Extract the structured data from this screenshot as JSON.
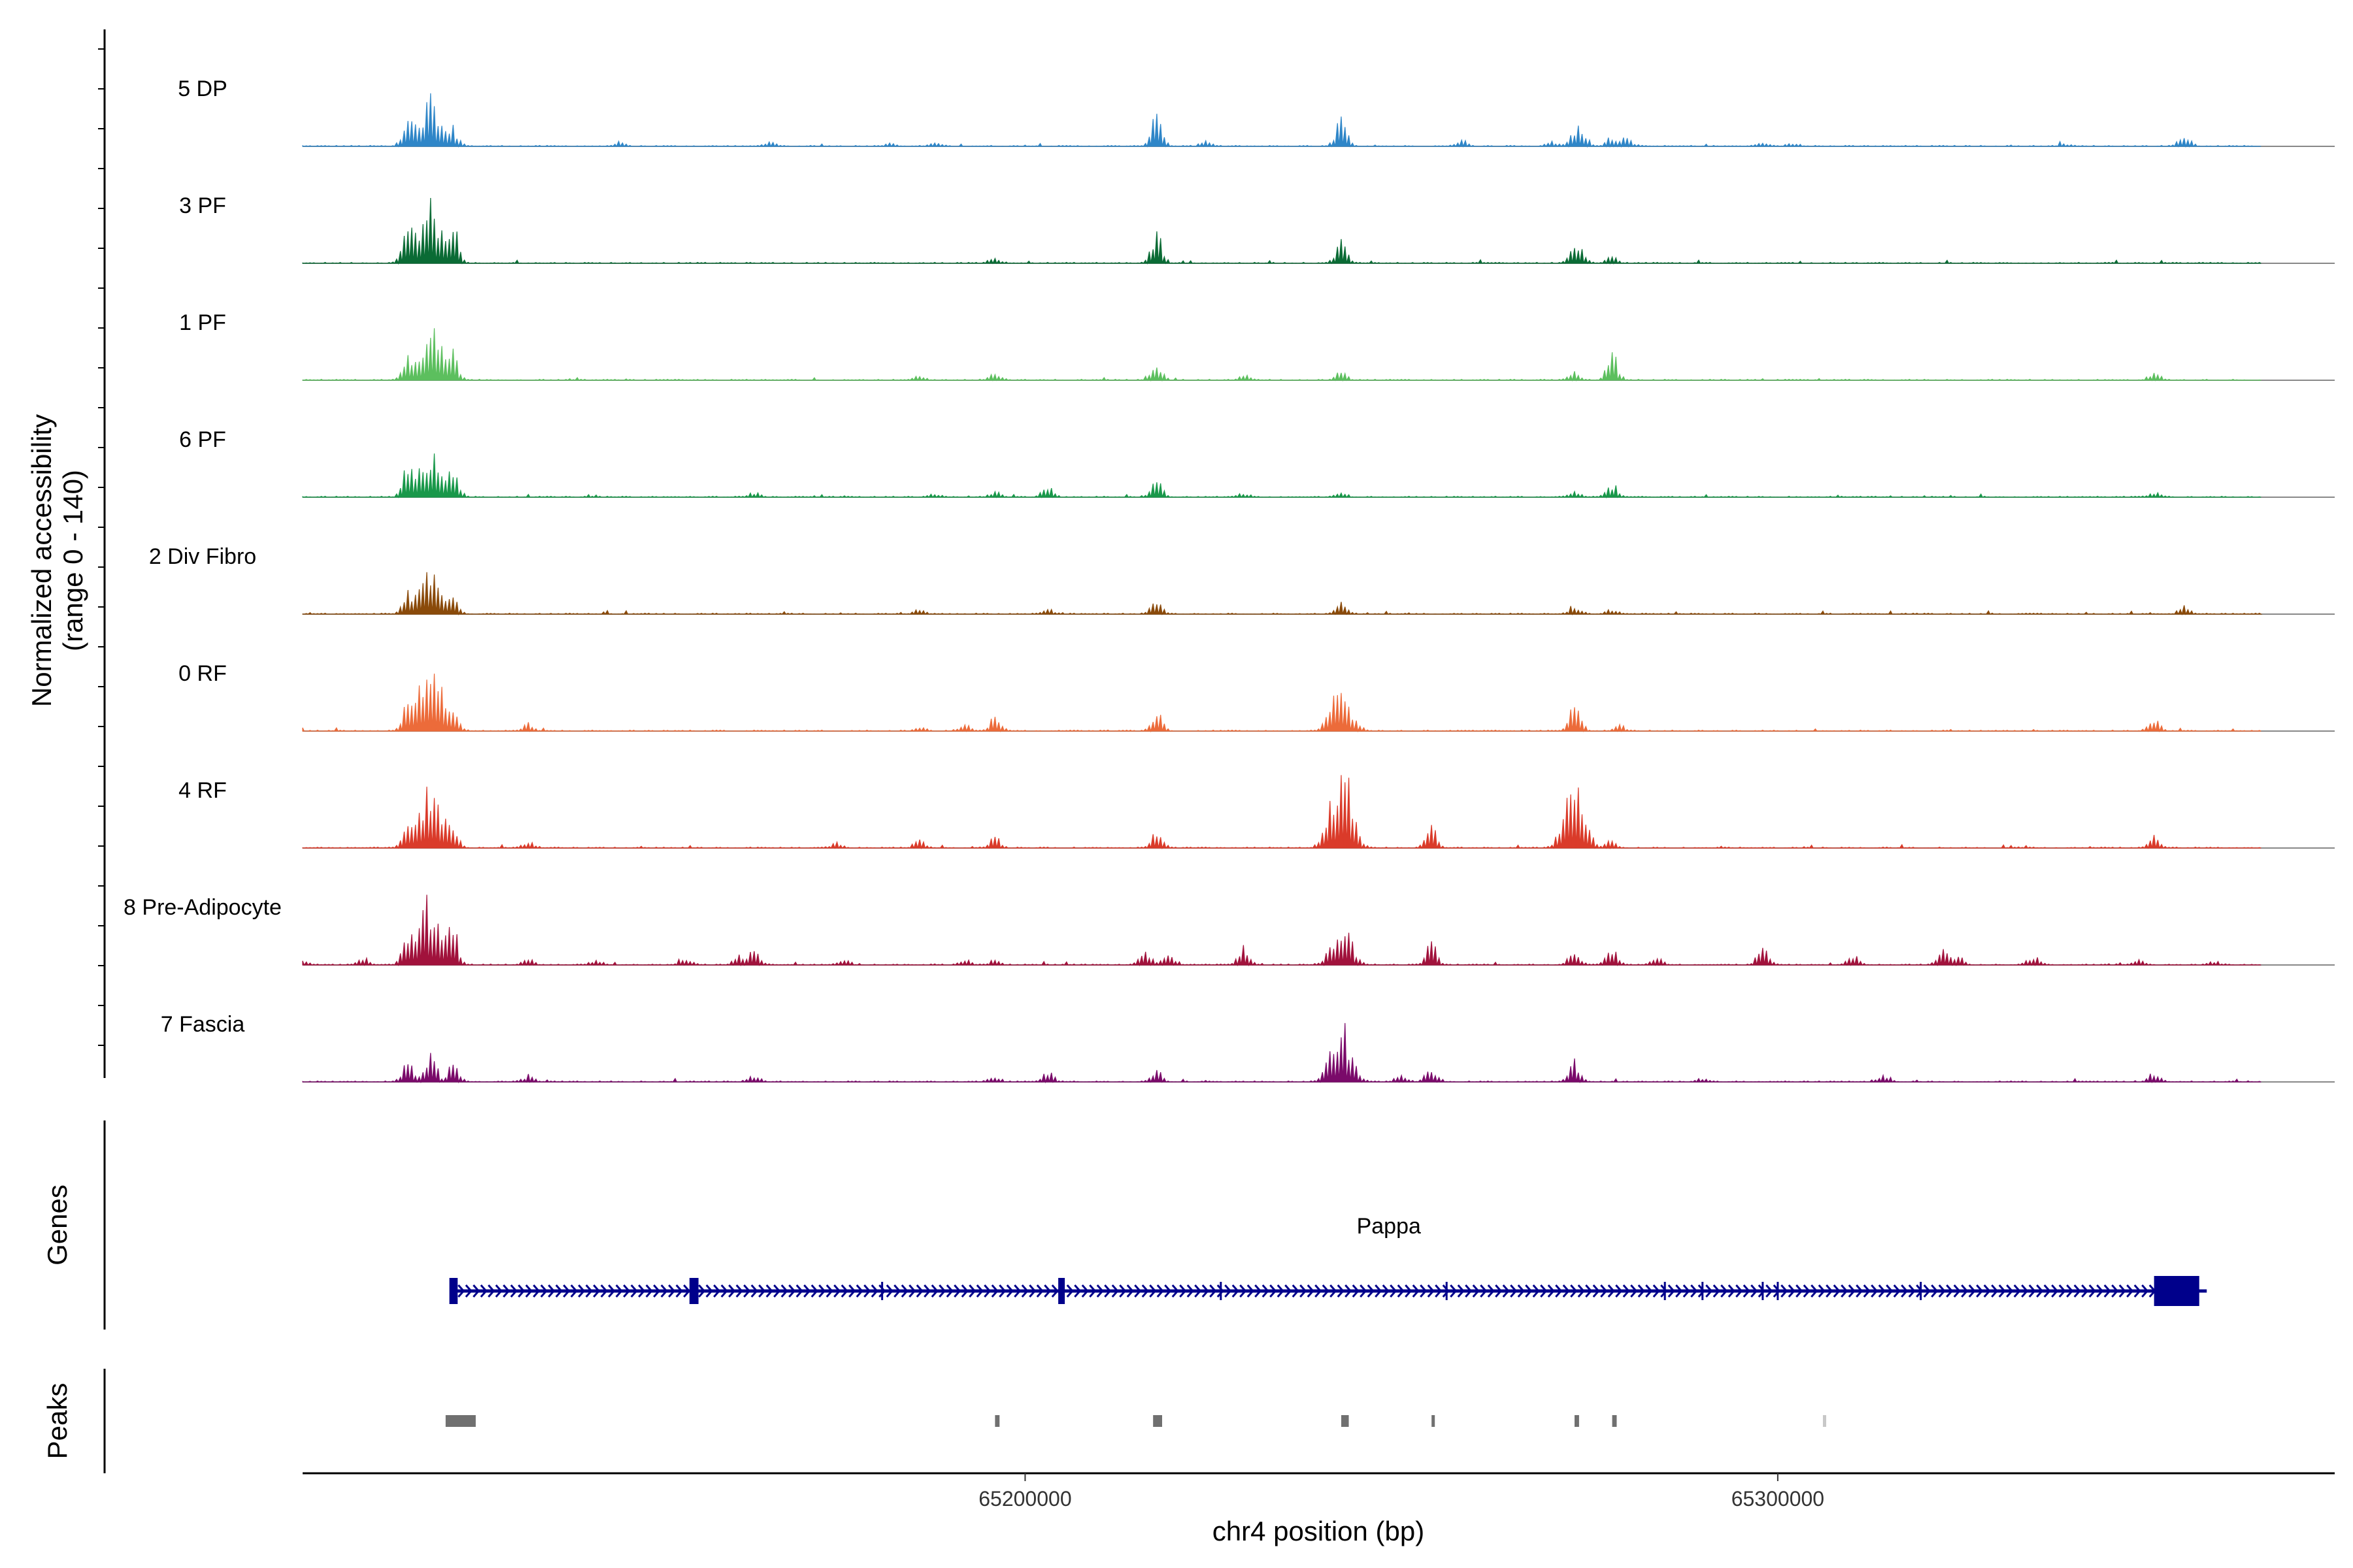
{
  "chart_data": {
    "type": "area",
    "title": "",
    "ylabel_line1": "Normalized accessibility",
    "ylabel_line2": "(range 0 - 140)",
    "ylim": [
      0,
      140
    ],
    "xlabel": "chr4 position (bp)",
    "xlim": [
      65104000,
      65374000
    ],
    "xticks": [
      {
        "value": 65200000,
        "label": "65200000"
      },
      {
        "value": 65300000,
        "label": "65300000"
      }
    ],
    "tracks": [
      {
        "name": "5 DP",
        "color": "#2f86c8",
        "peaks": [
          [
            65118000,
            45
          ],
          [
            65121000,
            75
          ],
          [
            65124000,
            25
          ],
          [
            65146000,
            6
          ],
          [
            65166000,
            7
          ],
          [
            65182000,
            5
          ],
          [
            65188000,
            5
          ],
          [
            65217500,
            58
          ],
          [
            65224000,
            8
          ],
          [
            65242000,
            46
          ],
          [
            65258000,
            10
          ],
          [
            65270000,
            8
          ],
          [
            65273000,
            18
          ],
          [
            65274000,
            26
          ],
          [
            65278000,
            15
          ],
          [
            65280000,
            14
          ],
          [
            65298000,
            6
          ],
          [
            65302000,
            5
          ],
          [
            65338000,
            4
          ],
          [
            65354000,
            20
          ]
        ]
      },
      {
        "name": "3 PF",
        "color": "#0a6b35",
        "peaks": [
          [
            65118000,
            55
          ],
          [
            65121000,
            95
          ],
          [
            65124000,
            60
          ],
          [
            65196000,
            8
          ],
          [
            65217500,
            48
          ],
          [
            65242000,
            36
          ],
          [
            65273000,
            22
          ],
          [
            65274000,
            14
          ],
          [
            65278000,
            10
          ]
        ]
      },
      {
        "name": "1 PF",
        "color": "#5cbf5e",
        "peaks": [
          [
            65118000,
            30
          ],
          [
            65121000,
            85
          ],
          [
            65124000,
            40
          ],
          [
            65186000,
            6
          ],
          [
            65196000,
            12
          ],
          [
            65217500,
            28
          ],
          [
            65229000,
            8
          ],
          [
            65242000,
            18
          ],
          [
            65273000,
            14
          ],
          [
            65278000,
            44
          ],
          [
            65350000,
            12
          ]
        ]
      },
      {
        "name": "6 PF",
        "color": "#19984a",
        "peaks": [
          [
            65118000,
            50
          ],
          [
            65121000,
            80
          ],
          [
            65124000,
            45
          ],
          [
            65164000,
            8
          ],
          [
            65188000,
            6
          ],
          [
            65196000,
            8
          ],
          [
            65203000,
            16
          ],
          [
            65217500,
            30
          ],
          [
            65229000,
            6
          ],
          [
            65242000,
            8
          ],
          [
            65273000,
            10
          ],
          [
            65278000,
            22
          ],
          [
            65350000,
            8
          ]
        ]
      },
      {
        "name": "2 Div Fibro",
        "color": "#8a4a0a",
        "peaks": [
          [
            65118000,
            30
          ],
          [
            65121000,
            70
          ],
          [
            65124000,
            30
          ],
          [
            65186000,
            6
          ],
          [
            65203000,
            8
          ],
          [
            65217500,
            25
          ],
          [
            65242000,
            18
          ],
          [
            65273000,
            14
          ],
          [
            65278000,
            8
          ],
          [
            65354000,
            12
          ]
        ]
      },
      {
        "name": "0 RF",
        "color": "#ec6b3a",
        "peaks": [
          [
            65118000,
            40
          ],
          [
            65121000,
            120
          ],
          [
            65124000,
            35
          ],
          [
            65134000,
            12
          ],
          [
            65186000,
            8
          ],
          [
            65192000,
            10
          ],
          [
            65196000,
            24
          ],
          [
            65217500,
            35
          ],
          [
            65242000,
            68
          ],
          [
            65273000,
            48
          ],
          [
            65279000,
            10
          ],
          [
            65350000,
            20
          ]
        ]
      },
      {
        "name": "4 RF",
        "color": "#da3b2a",
        "peaks": [
          [
            65118000,
            30
          ],
          [
            65121000,
            110
          ],
          [
            65124000,
            30
          ],
          [
            65134000,
            10
          ],
          [
            65175000,
            8
          ],
          [
            65186000,
            14
          ],
          [
            65196000,
            18
          ],
          [
            65217500,
            30
          ],
          [
            65242000,
            140
          ],
          [
            65254000,
            36
          ],
          [
            65273000,
            96
          ],
          [
            65278000,
            12
          ],
          [
            65350000,
            18
          ]
        ]
      },
      {
        "name": "8 Pre-Adipocyte",
        "color": "#a1123c",
        "peaks": [
          [
            65104000,
            8
          ],
          [
            65112000,
            12
          ],
          [
            65118000,
            45
          ],
          [
            65121000,
            110
          ],
          [
            65124000,
            60
          ],
          [
            65134000,
            10
          ],
          [
            65143000,
            8
          ],
          [
            65155000,
            12
          ],
          [
            65162000,
            15
          ],
          [
            65164000,
            25
          ],
          [
            65176000,
            8
          ],
          [
            65192000,
            10
          ],
          [
            65196000,
            8
          ],
          [
            65216000,
            25
          ],
          [
            65219000,
            15
          ],
          [
            65229000,
            30
          ],
          [
            65242000,
            65
          ],
          [
            65254000,
            35
          ],
          [
            65273000,
            25
          ],
          [
            65278000,
            28
          ],
          [
            65284000,
            12
          ],
          [
            65298000,
            30
          ],
          [
            65310000,
            15
          ],
          [
            65322000,
            25
          ],
          [
            65324000,
            12
          ],
          [
            65334000,
            15
          ],
          [
            65348000,
            8
          ],
          [
            65358000,
            6
          ]
        ]
      },
      {
        "name": "7 Fascia",
        "color": "#7a0a6a",
        "peaks": [
          [
            65118000,
            30
          ],
          [
            65121000,
            55
          ],
          [
            65124000,
            30
          ],
          [
            65134000,
            10
          ],
          [
            65164000,
            10
          ],
          [
            65196000,
            8
          ],
          [
            65203000,
            18
          ],
          [
            65217500,
            18
          ],
          [
            65242000,
            90
          ],
          [
            65250000,
            10
          ],
          [
            65254000,
            24
          ],
          [
            65273000,
            34
          ],
          [
            65290000,
            6
          ],
          [
            65314000,
            10
          ],
          [
            65350000,
            14
          ]
        ]
      }
    ],
    "gene": {
      "name": "Pappa",
      "color": "#00008b",
      "start": 65124000,
      "end": 65357000,
      "exons": [
        [
          65123500,
          65124600
        ],
        [
          65155400,
          65156600
        ],
        [
          65204400,
          65205000
        ],
        [
          65350000,
          65356000
        ]
      ],
      "minor_exons": [
        65181000,
        65226000,
        65256000,
        65285000,
        65290000,
        65298000,
        65300000,
        65319000
      ]
    },
    "peaks_track": {
      "color": "#707070",
      "regions": [
        [
          65123000,
          65127000
        ],
        [
          65196000,
          65196600
        ],
        [
          65217000,
          65218200
        ],
        [
          65242000,
          65243000
        ],
        [
          65254000,
          65254400
        ],
        [
          65273000,
          65273600
        ],
        [
          65278000,
          65278600
        ],
        [
          65306000,
          65306400
        ]
      ]
    }
  },
  "panels": {
    "genes_label": "Genes",
    "peaks_label": "Peaks"
  }
}
